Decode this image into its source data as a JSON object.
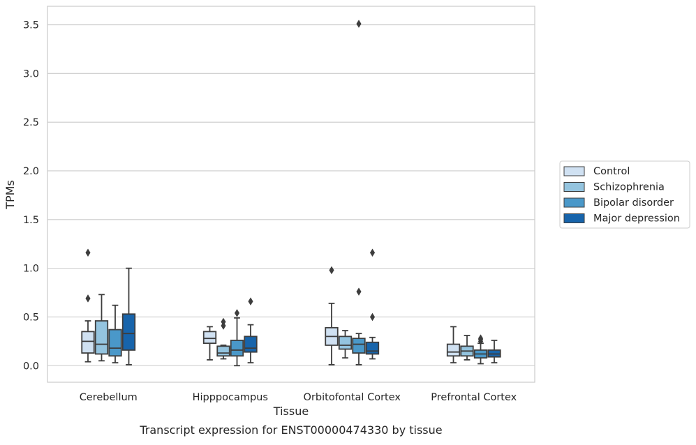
{
  "chart_data": {
    "type": "box",
    "title": "Transcript expression for ENST00000474330 by tissue",
    "xlabel": "Tissue",
    "ylabel": "TPMs",
    "ylim": [
      -0.17,
      3.69
    ],
    "yticks": [
      "0.0",
      "0.5",
      "1.0",
      "1.5",
      "2.0",
      "2.5",
      "3.0",
      "3.5"
    ],
    "categories": [
      "Cerebellum",
      "Hipppocampus",
      "Orbitofontal Cortex",
      "Prefrontal Cortex"
    ],
    "grid": true,
    "legend_position": "right",
    "series": [
      {
        "name": "Control",
        "color": "#d0e1f2",
        "boxes": [
          {
            "whislo": 0.04,
            "q1": 0.13,
            "med": 0.25,
            "q3": 0.35,
            "whishi": 0.46,
            "fliers": [
              0.69,
              1.16
            ]
          },
          {
            "whislo": 0.06,
            "q1": 0.23,
            "med": 0.28,
            "q3": 0.35,
            "whishi": 0.4,
            "fliers": []
          },
          {
            "whislo": 0.01,
            "q1": 0.21,
            "med": 0.3,
            "q3": 0.39,
            "whishi": 0.64,
            "fliers": [
              0.98
            ]
          },
          {
            "whislo": 0.03,
            "q1": 0.1,
            "med": 0.14,
            "q3": 0.22,
            "whishi": 0.4,
            "fliers": []
          }
        ]
      },
      {
        "name": "Schizophrenia",
        "color": "#94c4df",
        "boxes": [
          {
            "whislo": 0.05,
            "q1": 0.12,
            "med": 0.22,
            "q3": 0.46,
            "whishi": 0.73,
            "fliers": []
          },
          {
            "whislo": 0.07,
            "q1": 0.1,
            "med": 0.13,
            "q3": 0.2,
            "whishi": 0.21,
            "fliers": [
              0.41,
              0.45
            ]
          },
          {
            "whislo": 0.08,
            "q1": 0.17,
            "med": 0.21,
            "q3": 0.3,
            "whishi": 0.36,
            "fliers": []
          },
          {
            "whislo": 0.06,
            "q1": 0.1,
            "med": 0.15,
            "q3": 0.2,
            "whishi": 0.31,
            "fliers": []
          }
        ]
      },
      {
        "name": "Bipolar disorder",
        "color": "#4a98c9",
        "boxes": [
          {
            "whislo": 0.03,
            "q1": 0.1,
            "med": 0.18,
            "q3": 0.37,
            "whishi": 0.62,
            "fliers": []
          },
          {
            "whislo": 0.0,
            "q1": 0.1,
            "med": 0.16,
            "q3": 0.26,
            "whishi": 0.49,
            "fliers": [
              0.54
            ]
          },
          {
            "whislo": 0.01,
            "q1": 0.13,
            "med": 0.22,
            "q3": 0.28,
            "whishi": 0.33,
            "fliers": [
              0.76,
              3.51
            ]
          },
          {
            "whislo": 0.02,
            "q1": 0.08,
            "med": 0.12,
            "q3": 0.16,
            "whishi": 0.23,
            "fliers": [
              0.25,
              0.27,
              0.28
            ]
          }
        ]
      },
      {
        "name": "Major depression",
        "color": "#1764ab",
        "boxes": [
          {
            "whislo": 0.01,
            "q1": 0.16,
            "med": 0.33,
            "q3": 0.53,
            "whishi": 1.0,
            "fliers": []
          },
          {
            "whislo": 0.03,
            "q1": 0.14,
            "med": 0.18,
            "q3": 0.3,
            "whishi": 0.42,
            "fliers": [
              0.66
            ]
          },
          {
            "whislo": 0.07,
            "q1": 0.12,
            "med": 0.15,
            "q3": 0.24,
            "whishi": 0.29,
            "fliers": [
              0.5,
              1.16
            ]
          },
          {
            "whislo": 0.03,
            "q1": 0.09,
            "med": 0.12,
            "q3": 0.16,
            "whishi": 0.26,
            "fliers": []
          }
        ]
      }
    ]
  }
}
